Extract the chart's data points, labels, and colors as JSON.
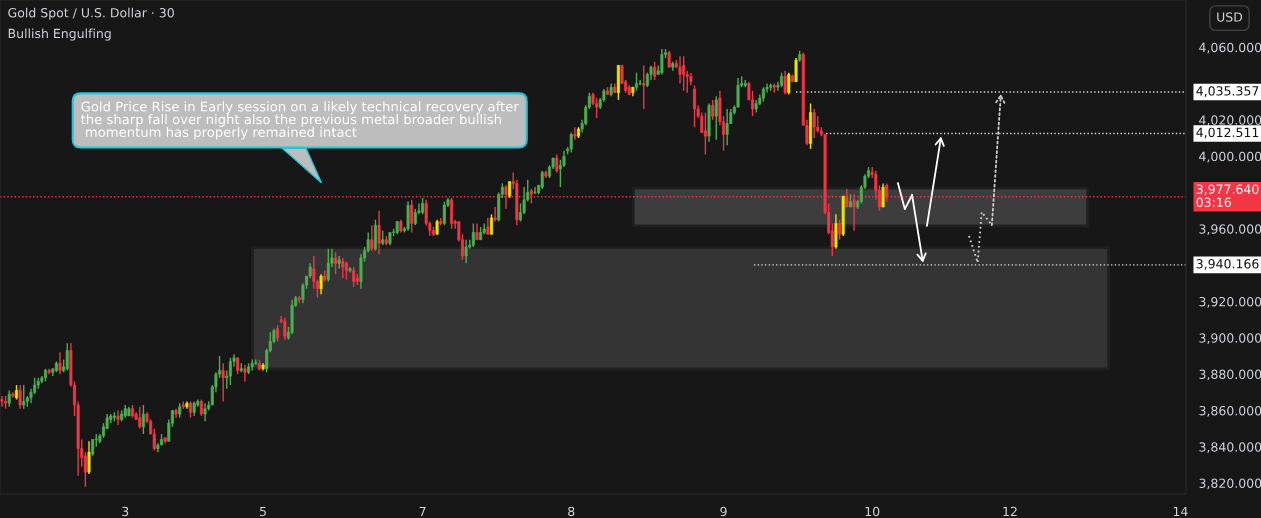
{
  "chart_data": {
    "type": "candlestick",
    "title": "Gold Spot / U.S. Dollar · 30",
    "subtitle": "Bullish Engulfing",
    "annotations": [
      "Gold Price Rise in Early session on a likely technical recovery after\nthe sharp fall over night also the previous metal broader bullish\n momentum has properly remained intact",
      "USD"
    ],
    "colors": [
      "#f23645",
      "#f23645",
      "#4caf50",
      "#f23645",
      "#e6e600",
      "#f23645",
      "#4caf50",
      "#4caf50",
      "#4caf50",
      "#4caf50",
      "#4caf50",
      "#4caf50",
      "#4caf50",
      "#f23645",
      "#4caf50",
      "#4caf50",
      "#f23645",
      "#4caf50",
      "#4caf50",
      "#f23645",
      "#f23645",
      "#f23645",
      "#f23645",
      "#f23645",
      "#e6e600",
      "#4caf50",
      "#4caf50",
      "#4caf50",
      "#4caf50",
      "#4caf50",
      "#4caf50",
      "#4caf50",
      "#f23645",
      "#4caf50",
      "#4caf50",
      "#4caf50",
      "#f23645",
      "#f23645",
      "#f23645",
      "#4caf50",
      "#f23645",
      "#f23645",
      "#f23645",
      "#4caf50",
      "#4caf50",
      "#f23645",
      "#4caf50",
      "#4caf50",
      "#f23645",
      "#4caf50",
      "#f23645",
      "#e6e600",
      "#f23645",
      "#4caf50",
      "#4caf50",
      "#f23645",
      "#4caf50",
      "#4caf50",
      "#4caf50",
      "#4caf50",
      "#4caf50",
      "#f23645",
      "#4caf50",
      "#4caf50",
      "#4caf50",
      "#f23645",
      "#4caf50",
      "#f23645",
      "#4caf50",
      "#4caf50",
      "#4caf50",
      "#f23645",
      "#e6e600",
      "#4caf50",
      "#4caf50",
      "#4caf50",
      "#f23645",
      "#f23645",
      "#f23645",
      "#4caf50",
      "#4caf50",
      "#4caf50",
      "#f23645",
      "#4caf50",
      "#4caf50",
      "#4caf50",
      "#f23645",
      "#f23645",
      "#e6e600",
      "#f23645",
      "#4caf50",
      "#4caf50",
      "#f23645",
      "#4caf50",
      "#f23645",
      "#f23645",
      "#4caf50",
      "#f23645",
      "#f23645",
      "#4caf50",
      "#4caf50",
      "#4caf50",
      "#f23645",
      "#4caf50",
      "#f23645",
      "#4caf50",
      "#f23645",
      "#4caf50",
      "#4caf50",
      "#4caf50",
      "#f23645",
      "#4caf50",
      "#4caf50",
      "#f23645",
      "#4caf50",
      "#4caf50",
      "#4caf50",
      "#f23645",
      "#f23645",
      "#f23645",
      "#e6e600",
      "#f23645",
      "#4caf50",
      "#4caf50",
      "#f23645",
      "#f23645",
      "#f23645",
      "#f23645",
      "#4caf50",
      "#4caf50",
      "#4caf50",
      "#f23645",
      "#4caf50",
      "#4caf50",
      "#f23645",
      "#e6e600",
      "#f23645",
      "#4caf50",
      "#4caf50",
      "#f23645",
      "#e6e600",
      "#f23645",
      "#f23645",
      "#4caf50",
      "#4caf50",
      "#4caf50",
      "#f23645",
      "#4caf50",
      "#4caf50",
      "#4caf50",
      "#f23645",
      "#4caf50",
      "#4caf50",
      "#f23645",
      "#4caf50",
      "#4caf50",
      "#4caf50",
      "#4caf50",
      "#f23645",
      "#e6e600",
      "#4caf50",
      "#4caf50",
      "#4caf50",
      "#f23645",
      "#f23645",
      "#4caf50",
      "#4caf50",
      "#f23645",
      "#4caf50",
      "#f23645",
      "#e6e600",
      "#f23645",
      "#f23645",
      "#f23645",
      "#e6e600",
      "#4caf50",
      "#4caf50",
      "#f23645",
      "#4caf50",
      "#4caf50",
      "#f23645",
      "#4caf50",
      "#4caf50",
      "#4caf50",
      "#f23645",
      "#4caf50",
      "#f23645",
      "#f23645",
      "#f23645",
      "#f23645",
      "#f23645",
      "#f23645",
      "#f23645",
      "#f23645",
      "#f23645",
      "#4caf50",
      "#f23645",
      "#4caf50",
      "#f23645",
      "#f23645",
      "#4caf50",
      "#4caf50",
      "#4caf50",
      "#4caf50",
      "#4caf50",
      "#4caf50",
      "#f23645",
      "#f23645",
      "#4caf50",
      "#4caf50",
      "#4caf50",
      "#4caf50",
      "#4caf50",
      "#f23645",
      "#4caf50",
      "#4caf50",
      "#f23645",
      "#e6e600",
      "#f23645",
      "#e6e600",
      "#4caf50",
      "#f23645",
      "#f23645",
      "#e6e600",
      "#f23645",
      "#f23645",
      "#f23645",
      "#f23645",
      "#f23645",
      "#f23645",
      "#e6e600",
      "#f23645",
      "#e6e600",
      "#f23645",
      "#4caf50",
      "#f23645",
      "#4caf50",
      "#4caf50",
      "#4caf50",
      "#4caf50",
      "#f23645",
      "#f23645",
      "#f23645",
      "#e6e600",
      "#f23645",
      null,
      null,
      null,
      null,
      null,
      null,
      null,
      null,
      null,
      null,
      null,
      null,
      null,
      null,
      null,
      null,
      null,
      null,
      null,
      null,
      null,
      null,
      null,
      null,
      null,
      null,
      null,
      null,
      null,
      null,
      null,
      null,
      null,
      null,
      null,
      null,
      null,
      null,
      null,
      null,
      null,
      null,
      null,
      null,
      null,
      null,
      null,
      null,
      null,
      null,
      null,
      null,
      null,
      null,
      null,
      null,
      null,
      null,
      null,
      null,
      null,
      null,
      null,
      null,
      null,
      null,
      null,
      null,
      null,
      null,
      null,
      null,
      null,
      null,
      null,
      null,
      null,
      null,
      null,
      null,
      null,
      null
    ],
    "categories": [
      null,
      null,
      null,
      null,
      null,
      null,
      null,
      null,
      null,
      null,
      null,
      null,
      null,
      null,
      null,
      null,
      null,
      null,
      null,
      null,
      null,
      null,
      null,
      null,
      null,
      null,
      null,
      null,
      null,
      null,
      null,
      null,
      null,
      null,
      "3",
      null,
      null,
      null,
      null,
      null,
      null,
      null,
      null,
      null,
      null,
      null,
      null,
      null,
      null,
      null,
      null,
      null,
      null,
      null,
      null,
      null,
      null,
      null,
      null,
      null,
      null,
      null,
      null,
      null,
      null,
      null,
      null,
      null,
      null,
      null,
      null,
      null,
      "5",
      null,
      null,
      null,
      null,
      null,
      null,
      null,
      null,
      null,
      null,
      null,
      null,
      null,
      null,
      null,
      null,
      null,
      null,
      null,
      null,
      null,
      null,
      null,
      null,
      null,
      null,
      null,
      null,
      null,
      null,
      null,
      null,
      null,
      null,
      null,
      null,
      null,
      null,
      null,
      null,
      null,
      null,
      null,
      "7",
      null,
      null,
      null,
      null,
      null,
      null,
      null,
      null,
      null,
      null,
      null,
      null,
      null,
      null,
      null,
      null,
      null,
      null,
      null,
      null,
      null,
      null,
      null,
      null,
      null,
      null,
      null,
      null,
      null,
      null,
      null,
      null,
      null,
      null,
      null,
      null,
      null,
      null,
      null,
      null,
      "8",
      null,
      null,
      null,
      null,
      null,
      null,
      null,
      null,
      null,
      null,
      null,
      null,
      null,
      null,
      null,
      null,
      null,
      null,
      null,
      null,
      null,
      null,
      null,
      null,
      null,
      null,
      null,
      null,
      null,
      null,
      null,
      null,
      null,
      null,
      null,
      null,
      null,
      null,
      null,
      null,
      null,
      "9",
      null,
      null,
      null,
      null,
      null,
      null,
      null,
      null,
      null,
      null,
      null,
      null,
      null,
      null,
      null,
      null,
      null,
      null,
      null,
      null,
      null,
      null,
      null,
      null,
      null,
      null,
      null,
      null,
      null,
      null,
      null,
      null,
      null,
      null,
      null,
      null,
      null,
      null,
      null,
      null,
      "10",
      null,
      null,
      null,
      null,
      null,
      null,
      null,
      null,
      null,
      null,
      null,
      null,
      null,
      null,
      null,
      null,
      null,
      null,
      null,
      null,
      null,
      null,
      null,
      null,
      null,
      null,
      null,
      null,
      null,
      null,
      null,
      null,
      null,
      null,
      null,
      null,
      null,
      "12",
      null,
      null,
      null,
      null,
      null,
      null,
      null,
      null,
      null,
      null,
      null,
      null,
      null,
      null,
      null,
      null,
      null,
      null,
      null,
      null,
      null,
      null,
      null,
      null,
      null,
      null,
      null,
      null,
      null,
      null,
      null,
      null,
      null,
      null,
      null,
      null,
      null,
      null,
      null,
      null,
      null,
      null,
      null,
      null,
      null,
      null,
      "14",
      null
    ],
    "ohlc": [
      [
        3866,
        3868,
        3862,
        3865
      ],
      [
        3865,
        3868,
        3861,
        3864
      ],
      [
        3864,
        3871,
        3862,
        3869
      ],
      [
        3869,
        3870,
        3867,
        3868
      ],
      [
        3867,
        3874,
        3866,
        3871
      ],
      [
        3871,
        3874,
        3861,
        3863
      ],
      [
        3863,
        3874,
        3861,
        3865
      ],
      [
        3865,
        3868,
        3862,
        3867
      ],
      [
        3867,
        3872,
        3864,
        3870
      ],
      [
        3870,
        3878,
        3869,
        3874
      ],
      [
        3874,
        3878,
        3872,
        3876
      ],
      [
        3876,
        3879,
        3875,
        3878
      ],
      [
        3878,
        3883,
        3876,
        3882
      ],
      [
        3882,
        3883,
        3880,
        3881
      ],
      [
        3881,
        3883,
        3879,
        3883
      ],
      [
        3882,
        3887,
        3881,
        3886
      ],
      [
        3886,
        3892,
        3880,
        3882
      ],
      [
        3882,
        3888,
        3881,
        3884
      ],
      [
        3883,
        3897,
        3882,
        3893
      ],
      [
        3893,
        3897,
        3873,
        3874
      ],
      [
        3874,
        3876,
        3857,
        3863
      ],
      [
        3863,
        3865,
        3824,
        3839
      ],
      [
        3839,
        3844,
        3829,
        3834
      ],
      [
        3835,
        3837,
        3818,
        3826
      ],
      [
        3826,
        3843,
        3825,
        3837
      ],
      [
        3836,
        3844,
        3835,
        3844
      ],
      [
        3844,
        3847,
        3840,
        3844
      ],
      [
        3843,
        3847,
        3842,
        3846
      ],
      [
        3846,
        3853,
        3845,
        3851
      ],
      [
        3850,
        3858,
        3850,
        3856
      ],
      [
        3855,
        3858,
        3853,
        3857
      ],
      [
        3856,
        3859,
        3854,
        3857
      ],
      [
        3857,
        3860,
        3852,
        3855
      ],
      [
        3855,
        3860,
        3854,
        3858
      ],
      [
        3857,
        3863,
        3856,
        3861
      ],
      [
        3857,
        3862,
        3857,
        3861
      ],
      [
        3861,
        3863,
        3856,
        3857
      ],
      [
        3858,
        3859,
        3855,
        3855
      ],
      [
        3856,
        3862,
        3850,
        3851
      ],
      [
        3851,
        3863,
        3847,
        3858
      ],
      [
        3858,
        3859,
        3853,
        3854
      ],
      [
        3854,
        3855,
        3847,
        3847
      ],
      [
        3847,
        3850,
        3838,
        3839
      ],
      [
        3839,
        3842,
        3837,
        3841
      ],
      [
        3841,
        3847,
        3841,
        3844
      ],
      [
        3845,
        3845,
        3842,
        3843
      ],
      [
        3843,
        3855,
        3843,
        3853
      ],
      [
        3853,
        3860,
        3851,
        3860
      ],
      [
        3860,
        3861,
        3856,
        3858
      ],
      [
        3858,
        3864,
        3856,
        3862
      ],
      [
        3863,
        3865,
        3861,
        3862
      ],
      [
        3862,
        3865,
        3861,
        3864
      ],
      [
        3864,
        3865,
        3856,
        3859
      ],
      [
        3859,
        3865,
        3857,
        3864
      ],
      [
        3863,
        3866,
        3862,
        3865
      ],
      [
        3865,
        3866,
        3857,
        3858
      ],
      [
        3858,
        3864,
        3854,
        3861
      ],
      [
        3861,
        3865,
        3860,
        3863
      ],
      [
        3863,
        3874,
        3863,
        3873
      ],
      [
        3873,
        3881,
        3870,
        3880
      ],
      [
        3880,
        3890,
        3878,
        3882
      ],
      [
        3882,
        3886,
        3865,
        3878
      ],
      [
        3878,
        3882,
        3872,
        3879
      ],
      [
        3879,
        3889,
        3874,
        3887
      ],
      [
        3887,
        3891,
        3884,
        3889
      ],
      [
        3889,
        3889,
        3880,
        3882
      ],
      [
        3882,
        3886,
        3881,
        3883
      ],
      [
        3883,
        3885,
        3876,
        3881
      ],
      [
        3881,
        3886,
        3880,
        3884
      ],
      [
        3884,
        3888,
        3882,
        3886
      ],
      [
        3886,
        3888,
        3885,
        3886
      ],
      [
        3886,
        3888,
        3882,
        3883
      ],
      [
        3883,
        3886,
        3882,
        3885
      ],
      [
        3883,
        3894,
        3881,
        3893
      ],
      [
        3893,
        3903,
        3892,
        3898
      ],
      [
        3898,
        3905,
        3897,
        3904
      ],
      [
        3905,
        3907,
        3898,
        3900
      ],
      [
        3910,
        3912,
        3908,
        3909
      ],
      [
        3909,
        3911,
        3899,
        3901
      ],
      [
        3900,
        3906,
        3899,
        3903
      ],
      [
        3903,
        3921,
        3902,
        3918
      ],
      [
        3918,
        3923,
        3917,
        3922
      ],
      [
        3922,
        3923,
        3919,
        3921
      ],
      [
        3921,
        3930,
        3919,
        3929
      ],
      [
        3929,
        3934,
        3927,
        3934
      ],
      [
        3934,
        3941,
        3933,
        3939
      ],
      [
        3938,
        3945,
        3927,
        3931
      ],
      [
        3931,
        3932,
        3922,
        3927
      ],
      [
        3927,
        3935,
        3924,
        3934
      ],
      [
        3934,
        3937,
        3931,
        3932
      ],
      [
        3932,
        3949,
        3931,
        3941
      ],
      [
        3941,
        3949,
        3939,
        3944
      ],
      [
        3944,
        3947,
        3935,
        3941
      ],
      [
        3941,
        3945,
        3938,
        3943
      ],
      [
        3942,
        3944,
        3933,
        3939
      ],
      [
        3941,
        3942,
        3932,
        3937
      ],
      [
        3937,
        3939,
        3936,
        3938
      ],
      [
        3937,
        3939,
        3928,
        3931
      ],
      [
        3933,
        3935,
        3929,
        3931
      ],
      [
        3931,
        3946,
        3927,
        3944
      ],
      [
        3944,
        3950,
        3942,
        3948
      ],
      [
        3948,
        3958,
        3947,
        3954
      ],
      [
        3954,
        3962,
        3948,
        3949
      ],
      [
        3949,
        3965,
        3948,
        3962
      ],
      [
        3962,
        3970,
        3946,
        3952
      ],
      [
        3952,
        3959,
        3951,
        3954
      ],
      [
        3954,
        3956,
        3951,
        3952
      ],
      [
        3952,
        3958,
        3951,
        3958
      ],
      [
        3958,
        3960,
        3956,
        3958
      ],
      [
        3958,
        3964,
        3957,
        3964
      ],
      [
        3964,
        3965,
        3958,
        3959
      ],
      [
        3959,
        3961,
        3958,
        3960
      ],
      [
        3960,
        3975,
        3959,
        3973
      ],
      [
        3973,
        3976,
        3958,
        3963
      ],
      [
        3963,
        3971,
        3962,
        3969
      ],
      [
        3969,
        3974,
        3968,
        3970
      ],
      [
        3969,
        3977,
        3968,
        3974
      ],
      [
        3974,
        3976,
        3962,
        3963
      ],
      [
        3963,
        3964,
        3956,
        3959
      ],
      [
        3959,
        3961,
        3956,
        3957
      ],
      [
        3957,
        3965,
        3957,
        3964
      ],
      [
        3964,
        3966,
        3962,
        3963
      ],
      [
        3963,
        3975,
        3962,
        3973
      ],
      [
        3973,
        3977,
        3972,
        3976
      ],
      [
        3976,
        3977,
        3960,
        3963
      ],
      [
        3964,
        3965,
        3960,
        3963
      ],
      [
        3964,
        3964,
        3953,
        3954
      ],
      [
        3954,
        3957,
        3943,
        3945
      ],
      [
        3945,
        3954,
        3941,
        3950
      ],
      [
        3950,
        3954,
        3949,
        3951
      ],
      [
        3951,
        3963,
        3950,
        3958
      ],
      [
        3958,
        3963,
        3954,
        3954
      ],
      [
        3954,
        3961,
        3954,
        3958
      ],
      [
        3958,
        3963,
        3957,
        3960
      ],
      [
        3961,
        3966,
        3957,
        3957
      ],
      [
        3957,
        3968,
        3957,
        3966
      ],
      [
        3966,
        3972,
        3964,
        3965
      ],
      [
        3965,
        3980,
        3964,
        3979
      ],
      [
        3979,
        3985,
        3977,
        3983
      ],
      [
        3983,
        3984,
        3971,
        3979
      ],
      [
        3978,
        3986,
        3977,
        3986
      ],
      [
        3986,
        3991,
        3982,
        3985
      ],
      [
        3985,
        3987,
        3962,
        3965
      ],
      [
        3965,
        3974,
        3964,
        3969
      ],
      [
        3969,
        3983,
        3968,
        3976
      ],
      [
        3976,
        3987,
        3975,
        3980
      ],
      [
        3981,
        3982,
        3974,
        3979
      ],
      [
        3980,
        3983,
        3979,
        3980
      ],
      [
        3980,
        3984,
        3979,
        3984
      ],
      [
        3983,
        3992,
        3982,
        3991
      ],
      [
        3991,
        3992,
        3988,
        3989
      ],
      [
        3989,
        3995,
        3988,
        3994
      ],
      [
        3994,
        3999,
        3993,
        3999
      ],
      [
        3999,
        4001,
        3991,
        3992
      ],
      [
        3993,
        3998,
        3983,
        3995
      ],
      [
        3995,
        4003,
        3994,
        4000
      ],
      [
        4003,
        4005,
        4001,
        4004
      ],
      [
        4004,
        4013,
        4002,
        4012
      ],
      [
        4012,
        4016,
        4009,
        4011
      ],
      [
        4011,
        4016,
        4010,
        4015
      ],
      [
        4015,
        4020,
        4013,
        4018
      ],
      [
        4018,
        4028,
        4017,
        4027
      ],
      [
        4027,
        4035,
        4026,
        4033
      ],
      [
        4034,
        4035,
        4028,
        4029
      ],
      [
        4029,
        4032,
        4021,
        4027
      ],
      [
        4027,
        4032,
        4026,
        4031
      ],
      [
        4031,
        4037,
        4030,
        4036
      ],
      [
        4036,
        4038,
        4034,
        4034
      ],
      [
        4034,
        4040,
        4033,
        4038
      ],
      [
        4038,
        4040,
        4035,
        4035
      ],
      [
        4035,
        4050,
        4031,
        4050
      ],
      [
        4050,
        4050,
        4040,
        4040
      ],
      [
        4041,
        4042,
        4035,
        4036
      ],
      [
        4038,
        4039,
        4034,
        4034
      ],
      [
        4035,
        4038,
        4033,
        4038
      ],
      [
        4038,
        4046,
        4036,
        4040
      ],
      [
        4040,
        4042,
        4039,
        4040
      ],
      [
        4040,
        4050,
        4026,
        4039
      ],
      [
        4039,
        4046,
        4038,
        4045
      ],
      [
        4045,
        4050,
        4042,
        4049
      ],
      [
        4049,
        4052,
        4042,
        4044
      ],
      [
        4045,
        4050,
        4045,
        4047
      ],
      [
        4046,
        4059,
        4045,
        4056
      ],
      [
        4056,
        4059,
        4054,
        4057
      ],
      [
        4057,
        4058,
        4049,
        4049
      ],
      [
        4049,
        4052,
        4047,
        4051
      ],
      [
        4051,
        4053,
        4049,
        4049
      ],
      [
        4049,
        4055,
        4040,
        4045
      ],
      [
        4050,
        4055,
        4036,
        4045
      ],
      [
        4045,
        4047,
        4035,
        4044
      ],
      [
        4044,
        4046,
        4039,
        4041
      ],
      [
        4037,
        4039,
        4016,
        4026
      ],
      [
        4026,
        4028,
        4021,
        4022
      ],
      [
        4022,
        4024,
        4013,
        4013
      ],
      [
        4014,
        4024,
        4001,
        4011
      ],
      [
        4011,
        4029,
        4008,
        4028
      ],
      [
        4028,
        4031,
        4020,
        4022
      ],
      [
        4022,
        4033,
        4009,
        4031
      ],
      [
        4032,
        4036,
        4017,
        4019
      ],
      [
        4019,
        4022,
        4003,
        4012
      ],
      [
        4012,
        4026,
        4006,
        4018
      ],
      [
        4018,
        4026,
        4018,
        4024
      ],
      [
        4024,
        4028,
        4023,
        4027
      ],
      [
        4027,
        4043,
        4027,
        4039
      ],
      [
        4039,
        4044,
        4038,
        4040
      ],
      [
        4039,
        4042,
        4038,
        4040
      ],
      [
        4040,
        4041,
        4031,
        4031
      ],
      [
        4031,
        4036,
        4022,
        4026
      ],
      [
        4026,
        4031,
        4024,
        4029
      ],
      [
        4029,
        4034,
        4028,
        4032
      ],
      [
        4032,
        4038,
        4030,
        4037
      ],
      [
        4037,
        4040,
        4035,
        4038
      ],
      [
        4038,
        4040,
        4036,
        4039
      ],
      [
        4039,
        4040,
        4035,
        4038
      ],
      [
        4038,
        4041,
        4036,
        4039
      ],
      [
        4039,
        4046,
        4038,
        4044
      ],
      [
        4044,
        4047,
        4034,
        4035
      ],
      [
        4035,
        4046,
        4034,
        4045
      ],
      [
        4044,
        4045,
        4041,
        4041
      ],
      [
        4041,
        4054,
        4041,
        4053
      ],
      [
        4053,
        4058,
        4052,
        4056
      ],
      [
        4056,
        4057,
        4017,
        4017
      ],
      [
        4017,
        4020,
        4006,
        4007
      ],
      [
        4007,
        4029,
        4004,
        4024
      ],
      [
        4024,
        4026,
        4010,
        4016
      ],
      [
        4016,
        4022,
        4013,
        4014
      ],
      [
        4014,
        4016,
        4011,
        4012
      ],
      [
        4012,
        4012,
        3968,
        3969
      ],
      [
        3969,
        3974,
        3957,
        3958
      ],
      [
        3959,
        3963,
        3945,
        3950
      ],
      [
        3950,
        3968,
        3949,
        3963
      ],
      [
        3963,
        3965,
        3954,
        3957
      ],
      [
        3957,
        3978,
        3956,
        3978
      ],
      [
        3978,
        3982,
        3972,
        3972
      ],
      [
        3972,
        3979,
        3972,
        3975
      ],
      [
        3976,
        3979,
        3959,
        3972
      ],
      [
        3972,
        3976,
        3971,
        3975
      ],
      [
        3975,
        3984,
        3974,
        3983
      ],
      [
        3983,
        3990,
        3982,
        3989
      ],
      [
        3989,
        3994,
        3988,
        3992
      ],
      [
        3991,
        3994,
        3988,
        3990
      ],
      [
        3990,
        3992,
        3976,
        3981
      ],
      [
        3981,
        3984,
        3970,
        3972
      ],
      [
        3972,
        3985,
        3972,
        3983
      ],
      [
        3984,
        3985,
        3975,
        3977.64
      ],
      null,
      null,
      null,
      null,
      null,
      null,
      null,
      null,
      null,
      null,
      null,
      null,
      null,
      null,
      null,
      null,
      null,
      null,
      null,
      null,
      null,
      null,
      null,
      null,
      null,
      null,
      null,
      null,
      null,
      null,
      null,
      null,
      null,
      null,
      null,
      null,
      null,
      null,
      null,
      null,
      null,
      null,
      null,
      null,
      null,
      null,
      null,
      null,
      null,
      null,
      null,
      null,
      null,
      null,
      null,
      null,
      null,
      null,
      null,
      null,
      null,
      null,
      null,
      null,
      null,
      null,
      null,
      null,
      null,
      null,
      null,
      null,
      null,
      null,
      null,
      null,
      null,
      null,
      null,
      null,
      null,
      null
    ],
    "ylim": [
      3814,
      4086
    ],
    "yticks": [
      {
        "value": 3820,
        "label": "3,820.000"
      },
      {
        "value": 3840,
        "label": "3,840.000"
      },
      {
        "value": 3860,
        "label": "3,860.000"
      },
      {
        "value": 3880,
        "label": "3,880.000"
      },
      {
        "value": 3900,
        "label": "3,900.000"
      },
      {
        "value": 3920,
        "label": "3,920.000"
      },
      {
        "value": 3960,
        "label": "3,960.000"
      },
      {
        "value": 4000,
        "label": "4,000.000"
      },
      {
        "value": 4020,
        "label": "4,020.000"
      },
      {
        "value": 4060,
        "label": "4,060.000"
      }
    ],
    "ref_lines": [
      {
        "axis": "y",
        "value": 3977.64,
        "label": "3,977.640\n03:16",
        "color": "#f23645",
        "line_style": "dotted"
      },
      {
        "axis": "y",
        "value": 4035.357,
        "label": "4,035.357",
        "color": "#d9d9d9",
        "line_style": "dotted"
      },
      {
        "axis": "y",
        "value": 4012.511,
        "label": "4,012.511",
        "color": "#d9d9d9",
        "line_style": "dotted"
      },
      {
        "axis": "y",
        "value": 3940.166,
        "label": "3,940.166",
        "color": "#d9d9d9",
        "line_style": "dotted"
      }
    ],
    "bands": [
      {
        "axis": "y",
        "from": 3882.9,
        "to": 3949.6,
        "color": "#3a3a3a"
      },
      {
        "axis": "y",
        "from": 3961.6,
        "to": 3982.4,
        "color": "#444444"
      }
    ]
  }
}
